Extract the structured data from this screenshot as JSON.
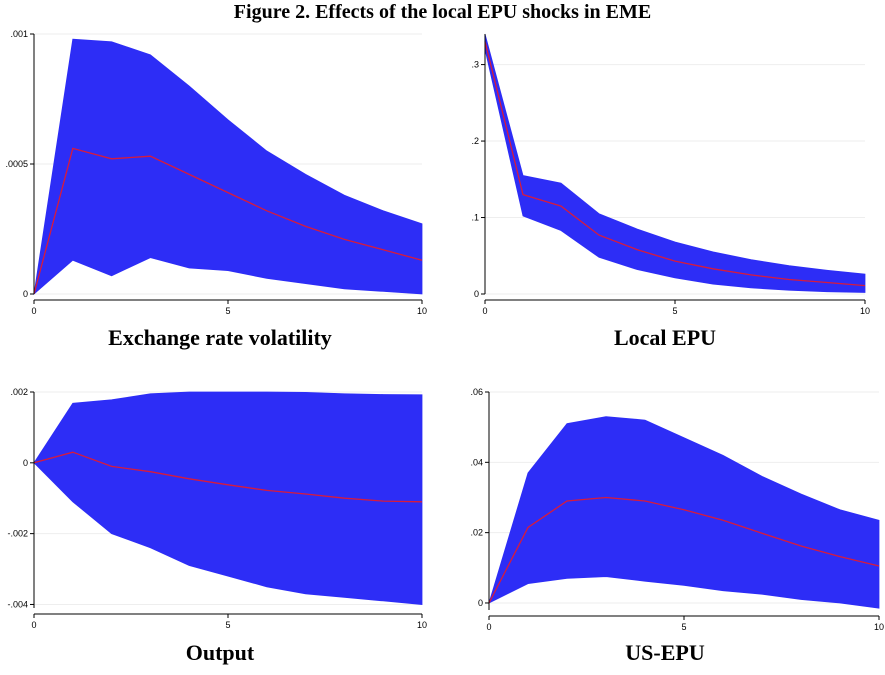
{
  "figure_title": "Figure 2.  Effects of the local EPU shocks in EME",
  "colors": {
    "band": "#2d2df6",
    "irf_line": "#d81b3c",
    "axis": "#000000",
    "grid": "#eeeeee"
  },
  "chart_data": [
    {
      "type": "area",
      "title": "Exchange rate volatility",
      "xlabel": "",
      "ylabel": "",
      "x": [
        0,
        1,
        2,
        3,
        4,
        5,
        6,
        7,
        8,
        9,
        10
      ],
      "xticks": [
        0,
        5,
        10
      ],
      "xtick_labels": [
        "0",
        "5",
        "10"
      ],
      "ylim": [
        0,
        0.001
      ],
      "yticks": [
        0,
        0.0005,
        0.001
      ],
      "ytick_labels": [
        "0",
        ".0005",
        ".001"
      ],
      "series": [
        {
          "role": "upper",
          "values": [
            0,
            0.00098,
            0.00097,
            0.00092,
            0.0008,
            0.00067,
            0.00055,
            0.00046,
            0.00038,
            0.00032,
            0.00027
          ]
        },
        {
          "role": "irf",
          "values": [
            0,
            0.00056,
            0.00052,
            0.00053,
            0.00046,
            0.00039,
            0.00032,
            0.00026,
            0.00021,
            0.00017,
            0.00013
          ]
        },
        {
          "role": "lower",
          "values": [
            0,
            0.00013,
            7e-05,
            0.00014,
            0.0001,
            9e-05,
            6e-05,
            4e-05,
            2e-05,
            1e-05,
            0.0
          ]
        }
      ]
    },
    {
      "type": "area",
      "title": "Local EPU",
      "xlabel": "",
      "ylabel": "",
      "x": [
        0,
        1,
        2,
        3,
        4,
        5,
        6,
        7,
        8,
        9,
        10
      ],
      "xticks": [
        0,
        5,
        10
      ],
      "xtick_labels": [
        "0",
        "5",
        "10"
      ],
      "ylim": [
        0,
        0.34
      ],
      "yticks": [
        0,
        0.1,
        0.2,
        0.3
      ],
      "ytick_labels": [
        "0",
        ".1",
        ".2",
        ".3"
      ],
      "series": [
        {
          "role": "upper",
          "values": [
            0.34,
            0.155,
            0.145,
            0.105,
            0.085,
            0.068,
            0.055,
            0.045,
            0.037,
            0.031,
            0.026
          ]
        },
        {
          "role": "irf",
          "values": [
            0.33,
            0.13,
            0.115,
            0.077,
            0.058,
            0.043,
            0.033,
            0.025,
            0.019,
            0.015,
            0.011
          ]
        },
        {
          "role": "lower",
          "values": [
            0.32,
            0.102,
            0.083,
            0.048,
            0.032,
            0.021,
            0.013,
            0.008,
            0.005,
            0.003,
            0.002
          ]
        }
      ]
    },
    {
      "type": "area",
      "title": "Output",
      "xlabel": "",
      "ylabel": "",
      "x": [
        0,
        1,
        2,
        3,
        4,
        5,
        6,
        7,
        8,
        9,
        10
      ],
      "xticks": [
        0,
        5,
        10
      ],
      "xtick_labels": [
        "0",
        "5",
        "10"
      ],
      "ylim": [
        -0.0041,
        0.002
      ],
      "yticks": [
        -0.004,
        -0.002,
        0,
        0.002
      ],
      "ytick_labels": [
        "-.004",
        "-.002",
        "0",
        ".002"
      ],
      "series": [
        {
          "role": "upper",
          "values": [
            0,
            0.00168,
            0.00178,
            0.00195,
            0.002,
            0.002,
            0.002,
            0.00199,
            0.00195,
            0.00193,
            0.00192
          ]
        },
        {
          "role": "irf",
          "values": [
            0,
            0.0003,
            -0.0001,
            -0.00025,
            -0.00045,
            -0.00062,
            -0.00078,
            -0.00088,
            -0.001,
            -0.00108,
            -0.0011
          ]
        },
        {
          "role": "lower",
          "values": [
            0,
            -0.0011,
            -0.002,
            -0.0024,
            -0.0029,
            -0.0032,
            -0.0035,
            -0.0037,
            -0.0038,
            -0.0039,
            -0.004
          ]
        }
      ]
    },
    {
      "type": "area",
      "title": "US-EPU",
      "xlabel": "",
      "ylabel": "",
      "x": [
        0,
        1,
        2,
        3,
        4,
        5,
        6,
        7,
        8,
        9,
        10
      ],
      "xticks": [
        0,
        5,
        10
      ],
      "xtick_labels": [
        "0",
        "5",
        "10"
      ],
      "ylim": [
        -0.002,
        0.06
      ],
      "yticks": [
        0,
        0.02,
        0.04,
        0.06
      ],
      "ytick_labels": [
        "0",
        ".02",
        ".04",
        ".06"
      ],
      "series": [
        {
          "role": "upper",
          "values": [
            0,
            0.037,
            0.051,
            0.053,
            0.052,
            0.047,
            0.042,
            0.036,
            0.031,
            0.0265,
            0.0235
          ]
        },
        {
          "role": "irf",
          "values": [
            0,
            0.0215,
            0.029,
            0.03,
            0.029,
            0.0265,
            0.0235,
            0.0198,
            0.0162,
            0.0132,
            0.0105
          ]
        },
        {
          "role": "lower",
          "values": [
            0,
            0.0055,
            0.007,
            0.0075,
            0.0062,
            0.005,
            0.0035,
            0.0025,
            0.001,
            0.0,
            -0.0015
          ]
        }
      ]
    }
  ]
}
